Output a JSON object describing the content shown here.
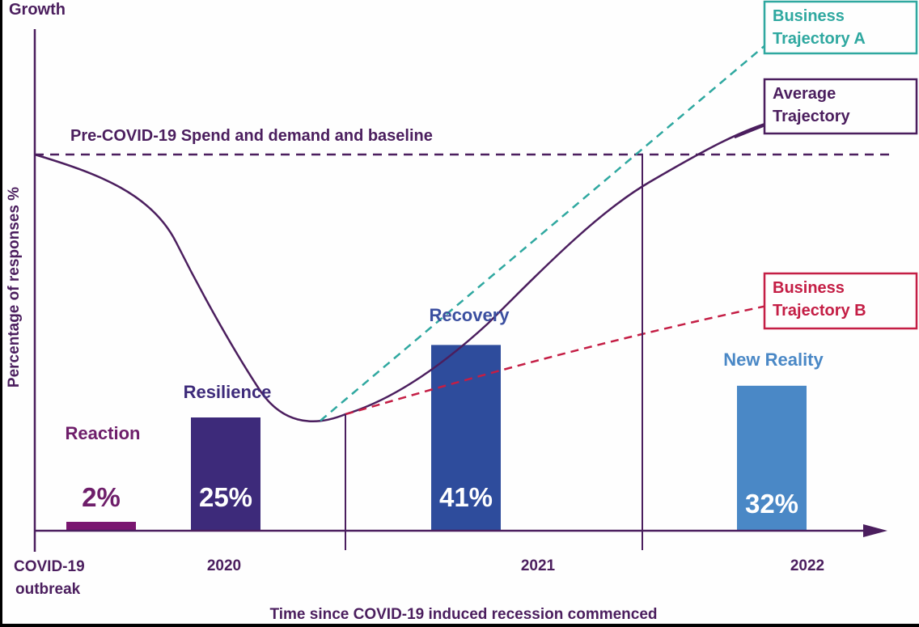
{
  "chart_data": {
    "type": "bar",
    "title": "",
    "xlabel": "Time since COVID-19 induced recession commenced",
    "ylabel": "Percentage of responses %",
    "y_top_label": "Growth",
    "origin_label": [
      "COVID-19",
      "outbreak"
    ],
    "period_labels": [
      "2020",
      "2021",
      "2022"
    ],
    "baseline_label": "Pre-COVID-19 Spend and demand and baseline",
    "ylim": [
      0,
      100
    ],
    "grid": false,
    "categories": [
      "Reaction",
      "Resilience",
      "Recovery",
      "New Reality"
    ],
    "values": [
      2,
      25,
      41,
      32
    ],
    "value_labels": [
      "2%",
      "25%",
      "41%",
      "32%"
    ],
    "bar_colors": [
      "#7a1670",
      "#3d2a7a",
      "#2e4c9c",
      "#4a88c6"
    ],
    "category_label_colors": [
      "#6e1e6a",
      "#3d2a7a",
      "#3b4fa0",
      "#4a88c6"
    ],
    "value_label_colors": [
      "#6e1e6a",
      "#ffffff",
      "#ffffff",
      "#ffffff"
    ],
    "trajectories": [
      {
        "name": "Business Trajectory A",
        "lines": [
          "Business",
          "Trajectory A"
        ],
        "color": "#2fa8a0",
        "style": "dashed"
      },
      {
        "name": "Average Trajectory",
        "lines": [
          "Average",
          "Trajectory"
        ],
        "color": "#4b1e5e",
        "style": "solid"
      },
      {
        "name": "Business Trajectory B",
        "lines": [
          "Business",
          "Trajectory B"
        ],
        "color": "#c41e45",
        "style": "dashed"
      }
    ],
    "axis_color": "#4b1e5e"
  }
}
